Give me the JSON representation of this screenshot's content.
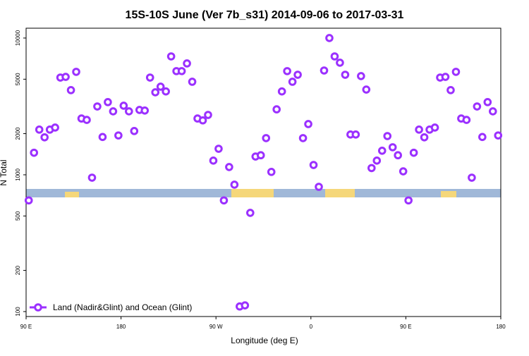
{
  "chart_data": {
    "type": "scatter",
    "title": "15S-10S June (Ver 7b_s31)   2014-09-06 to 2017-03-31",
    "x_label": "Longitude (deg E)",
    "y_label": "N Total",
    "log_y": true,
    "legend": "bottom-left",
    "xlim": [
      90,
      540
    ],
    "ylim": [
      92,
      11800
    ],
    "xticks": [
      {
        "value": 90,
        "label": "90 E"
      },
      180,
      {
        "value": 270,
        "label": "90 W"
      },
      {
        "value": 360,
        "label": "0"
      },
      {
        "value": 450,
        "label": "90 E"
      },
      {
        "value": 540,
        "label": "180"
      }
    ],
    "yticks": [
      100,
      200,
      500,
      1000,
      2000,
      5000,
      10000
    ],
    "series": [
      {
        "name": "Land (Nadir&Glint) and Ocean (Glint)",
        "color": "#9b30ff",
        "x": [
          92.5,
          97.5,
          102.5,
          107.5,
          112.5,
          117.5,
          122.5,
          127.5,
          132.5,
          137.5,
          142.5,
          147.5,
          152.5,
          157.5,
          162.5,
          167.5,
          172.5,
          177.5,
          182.5,
          187.5,
          192.5,
          197.5,
          202.5,
          207.5,
          212.5,
          217.5,
          222.5,
          227.5,
          232.5,
          237.5,
          242.5,
          247.5,
          252.5,
          257.5,
          262.5,
          267.5,
          272.5,
          277.5,
          282.5,
          287.5,
          292.5,
          297.5,
          302.5,
          307.5,
          312.5,
          317.5,
          322.5,
          327.5,
          332.5,
          337.5,
          342.5,
          347.5,
          352.5,
          357.5,
          362.5,
          367.5,
          372.5,
          377.5,
          382.5,
          387.5,
          392.5,
          397.5,
          402.5,
          407.5,
          412.5,
          417.5,
          422.5,
          427.5,
          432.5,
          437.5,
          442.5,
          447.5,
          452.5,
          457.5,
          462.5,
          467.5,
          472.5,
          477.5,
          482.5,
          487.5,
          492.5,
          497.5,
          502.5,
          507.5,
          512.5,
          517.5,
          522.5,
          527.5,
          532.5,
          537.5
        ],
        "values": [
          650,
          1450,
          2140,
          1880,
          2140,
          2215,
          5140,
          5200,
          4160,
          5660,
          2580,
          2520,
          953,
          3160,
          1890,
          3400,
          2910,
          1940,
          3200,
          2910,
          2090,
          2980,
          2950,
          5140,
          4010,
          4410,
          4070,
          7340,
          5730,
          5730,
          6520,
          4790,
          2580,
          2500,
          2740,
          1270,
          1550,
          650,
          1140,
          847,
          109,
          111,
          527,
          1360,
          1390,
          1855,
          1050,
          3010,
          4070,
          5730,
          4790,
          5390,
          1855,
          2350,
          1180,
          817,
          5790,
          10000,
          7340,
          6600,
          5390,
          1970,
          1970,
          5270,
          4200,
          1120,
          1270,
          1500,
          1920,
          1590,
          1390,
          1060,
          650,
          1450,
          2140,
          1880,
          2140,
          2215,
          5140,
          5200,
          4160,
          5660,
          2580,
          2520,
          953,
          3160,
          1890,
          3400,
          2910,
          1940
        ]
      }
    ]
  }
}
